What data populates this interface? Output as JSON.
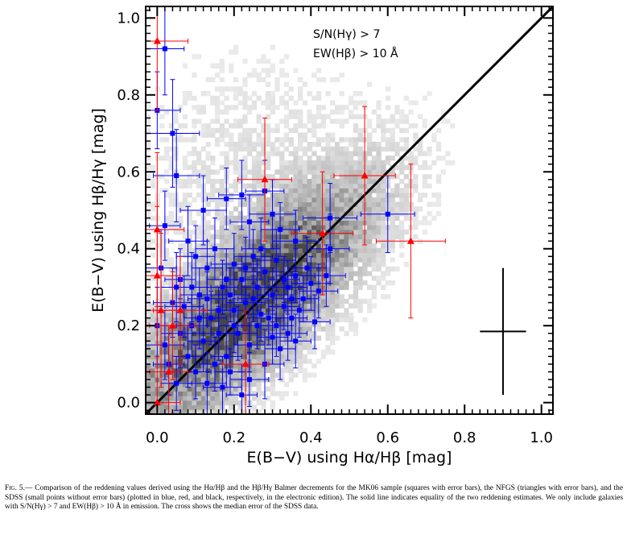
{
  "chart_data": {
    "type": "scatter",
    "xlabel": "E(B−V) using Hα/Hβ [mag]",
    "ylabel": "E(B−V) using Hβ/Hγ [mag]",
    "xlim": [
      -0.03,
      1.03
    ],
    "ylim": [
      -0.03,
      1.03
    ],
    "x_ticks": [
      "0.0",
      "0.2",
      "0.4",
      "0.6",
      "0.8",
      "1.0"
    ],
    "y_ticks": [
      "0.0",
      "0.2",
      "0.4",
      "0.6",
      "0.8",
      "1.0"
    ],
    "annotations": [
      "S/N(Hγ) > 7",
      "EW(Hβ) > 10 Å"
    ],
    "reference_line": {
      "style": "solid",
      "x": [
        -0.03,
        1.03
      ],
      "y": [
        -0.03,
        1.03
      ]
    },
    "median_error_cross": {
      "x": 0.9,
      "y": 0.185,
      "x_err": 0.06,
      "y_err": 0.165
    },
    "density_background": "grayscale 2D histogram of SDSS galaxies",
    "series": [
      {
        "name": "MK06",
        "marker": "square",
        "color": "#0000ff",
        "points": [
          [
            0.02,
            0.92,
            0.05,
            0.12
          ],
          [
            0.0,
            0.76,
            0.06,
            0.1
          ],
          [
            0.04,
            0.7,
            0.07,
            0.14
          ],
          [
            0.05,
            0.59,
            0.06,
            0.12
          ],
          [
            0.12,
            0.5,
            0.06,
            0.09
          ],
          [
            0.18,
            0.53,
            0.05,
            0.08
          ],
          [
            0.22,
            0.54,
            0.06,
            0.09
          ],
          [
            0.24,
            0.47,
            0.05,
            0.07
          ],
          [
            0.28,
            0.55,
            0.05,
            0.08
          ],
          [
            0.3,
            0.49,
            0.06,
            0.09
          ],
          [
            0.32,
            0.45,
            0.05,
            0.07
          ],
          [
            0.36,
            0.42,
            0.06,
            0.08
          ],
          [
            0.45,
            0.48,
            0.07,
            0.09
          ],
          [
            0.45,
            0.4,
            0.05,
            0.09
          ],
          [
            0.6,
            0.49,
            0.07,
            0.1
          ],
          [
            0.02,
            0.46,
            0.04,
            0.09
          ],
          [
            0.08,
            0.42,
            0.05,
            0.09
          ],
          [
            0.1,
            0.38,
            0.05,
            0.08
          ],
          [
            0.13,
            0.35,
            0.04,
            0.07
          ],
          [
            0.15,
            0.4,
            0.05,
            0.08
          ],
          [
            0.17,
            0.3,
            0.04,
            0.07
          ],
          [
            0.19,
            0.28,
            0.05,
            0.07
          ],
          [
            0.2,
            0.36,
            0.06,
            0.08
          ],
          [
            0.22,
            0.32,
            0.04,
            0.06
          ],
          [
            0.23,
            0.26,
            0.05,
            0.08
          ],
          [
            0.25,
            0.38,
            0.05,
            0.07
          ],
          [
            0.26,
            0.3,
            0.04,
            0.06
          ],
          [
            0.27,
            0.23,
            0.04,
            0.07
          ],
          [
            0.28,
            0.34,
            0.05,
            0.06
          ],
          [
            0.3,
            0.28,
            0.04,
            0.07
          ],
          [
            0.31,
            0.2,
            0.04,
            0.08
          ],
          [
            0.33,
            0.25,
            0.04,
            0.06
          ],
          [
            0.34,
            0.3,
            0.05,
            0.07
          ],
          [
            0.35,
            0.22,
            0.04,
            0.06
          ],
          [
            0.36,
            0.33,
            0.05,
            0.07
          ],
          [
            0.38,
            0.27,
            0.04,
            0.06
          ],
          [
            0.4,
            0.31,
            0.05,
            0.07
          ],
          [
            0.05,
            0.3,
            0.04,
            0.09
          ],
          [
            0.07,
            0.25,
            0.05,
            0.08
          ],
          [
            0.09,
            0.2,
            0.04,
            0.08
          ],
          [
            0.11,
            0.28,
            0.05,
            0.07
          ],
          [
            0.12,
            0.16,
            0.04,
            0.08
          ],
          [
            0.14,
            0.22,
            0.04,
            0.07
          ],
          [
            0.16,
            0.18,
            0.05,
            0.07
          ],
          [
            0.18,
            0.12,
            0.04,
            0.08
          ],
          [
            0.2,
            0.24,
            0.04,
            0.06
          ],
          [
            0.21,
            0.18,
            0.05,
            0.07
          ],
          [
            0.24,
            0.15,
            0.04,
            0.07
          ],
          [
            0.26,
            0.2,
            0.04,
            0.06
          ],
          [
            0.28,
            0.1,
            0.05,
            0.09
          ],
          [
            0.3,
            0.17,
            0.04,
            0.07
          ],
          [
            0.32,
            0.14,
            0.04,
            0.08
          ],
          [
            0.34,
            0.18,
            0.05,
            0.07
          ],
          [
            0.0,
            0.2,
            0.05,
            0.1
          ],
          [
            0.02,
            0.15,
            0.05,
            0.09
          ],
          [
            0.03,
            0.1,
            0.04,
            0.08
          ],
          [
            0.05,
            0.05,
            0.04,
            0.07
          ],
          [
            0.06,
            0.18,
            0.05,
            0.09
          ],
          [
            0.08,
            0.12,
            0.04,
            0.08
          ],
          [
            0.1,
            0.08,
            0.04,
            0.07
          ],
          [
            0.13,
            0.05,
            0.05,
            0.08
          ],
          [
            0.15,
            0.1,
            0.04,
            0.07
          ],
          [
            0.17,
            0.04,
            0.05,
            0.08
          ],
          [
            0.19,
            0.08,
            0.04,
            0.06
          ],
          [
            0.22,
            0.02,
            0.04,
            0.08
          ],
          [
            0.24,
            0.06,
            0.05,
            0.07
          ],
          [
            0.01,
            0.35,
            0.04,
            0.1
          ],
          [
            0.04,
            0.26,
            0.05,
            0.09
          ],
          [
            0.06,
            0.32,
            0.04,
            0.08
          ],
          [
            0.09,
            0.3,
            0.05,
            0.09
          ],
          [
            0.11,
            0.22,
            0.04,
            0.08
          ],
          [
            0.13,
            0.27,
            0.05,
            0.07
          ],
          [
            0.16,
            0.24,
            0.04,
            0.06
          ],
          [
            0.18,
            0.32,
            0.05,
            0.08
          ],
          [
            0.2,
            0.2,
            0.04,
            0.07
          ],
          [
            0.23,
            0.35,
            0.05,
            0.08
          ],
          [
            0.25,
            0.27,
            0.04,
            0.06
          ],
          [
            0.27,
            0.4,
            0.05,
            0.08
          ],
          [
            0.29,
            0.22,
            0.04,
            0.07
          ],
          [
            0.31,
            0.37,
            0.05,
            0.08
          ],
          [
            0.33,
            0.32,
            0.04,
            0.06
          ],
          [
            0.35,
            0.27,
            0.05,
            0.07
          ],
          [
            0.37,
            0.24,
            0.04,
            0.07
          ],
          [
            0.39,
            0.35,
            0.05,
            0.08
          ],
          [
            0.42,
            0.29,
            0.05,
            0.07
          ],
          [
            0.44,
            0.33,
            0.05,
            0.08
          ],
          [
            0.41,
            0.21,
            0.04,
            0.07
          ],
          [
            0.36,
            0.16,
            0.04,
            0.07
          ]
        ]
      },
      {
        "name": "NFGS",
        "marker": "triangle",
        "color": "#ff0000",
        "points": [
          [
            0.0,
            0.94,
            0.08,
            0.18
          ],
          [
            0.0,
            0.45,
            0.07,
            0.2
          ],
          [
            0.0,
            0.33,
            0.06,
            0.18
          ],
          [
            0.01,
            0.24,
            0.05,
            0.2
          ],
          [
            0.03,
            0.08,
            0.05,
            0.12
          ],
          [
            0.04,
            0.2,
            0.06,
            0.14
          ],
          [
            0.06,
            0.24,
            0.07,
            0.14
          ],
          [
            0.0,
            0.0,
            0.06,
            0.12
          ],
          [
            0.23,
            0.1,
            0.06,
            0.14
          ],
          [
            0.28,
            0.58,
            0.07,
            0.16
          ],
          [
            0.43,
            0.44,
            0.08,
            0.16
          ],
          [
            0.54,
            0.59,
            0.08,
            0.18
          ],
          [
            0.66,
            0.42,
            0.09,
            0.2
          ]
        ]
      }
    ]
  },
  "caption": {
    "lead": "Fig. 5.—",
    "text": " Comparison of the reddening values derived using the Hα/Hβ and the Hβ/Hγ Balmer decrements for the MK06 sample (squares with error bars), the NFGS (triangles with error bars), and the SDSS (small points without error bars) (plotted in blue, red, and black, respectively, in the electronic edition). The solid line indicates equality of the two reddening estimates. We only include galaxies with S/N(Hγ) > 7 and EW(Hβ) > 10 Å in emission. The cross shows the median error of the SDSS data."
  }
}
